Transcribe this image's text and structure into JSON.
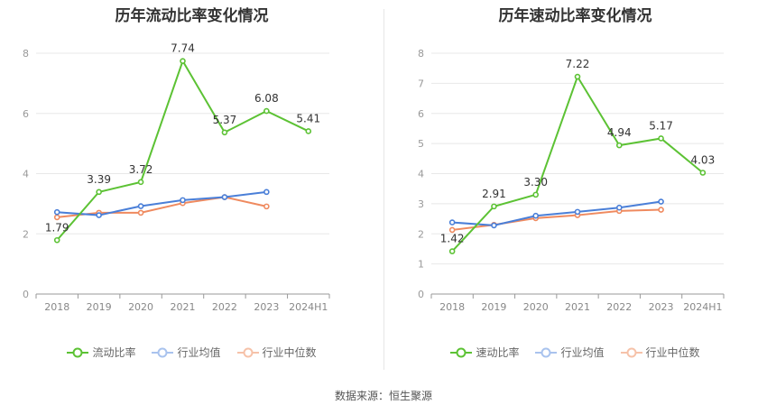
{
  "source_text": "数据来源：恒生聚源",
  "colors": {
    "company": "#5cc234",
    "industry_avg": "#4a7fd8",
    "industry_median": "#ef8a5f",
    "grid": "#e8e8e8",
    "axis": "#999999"
  },
  "chart_data": [
    {
      "type": "line",
      "title": "历年流动比率变化情况",
      "categories": [
        "2018",
        "2019",
        "2020",
        "2021",
        "2022",
        "2023",
        "2024H1"
      ],
      "ylim": [
        0,
        8
      ],
      "yticks": [
        0,
        2,
        4,
        6,
        8
      ],
      "grid": true,
      "legend_position": "bottom",
      "series": [
        {
          "name": "流动比率",
          "values": [
            1.79,
            3.39,
            3.72,
            7.74,
            5.37,
            6.08,
            5.41
          ],
          "labels": [
            "1.79",
            "3.39",
            "3.72",
            "7.74",
            "5.37",
            "6.08",
            "5.41"
          ]
        },
        {
          "name": "行业均值",
          "values": [
            2.72,
            2.62,
            2.92,
            3.12,
            3.22,
            3.39,
            null
          ]
        },
        {
          "name": "行业中位数",
          "values": [
            2.55,
            2.7,
            2.7,
            3.02,
            3.22,
            2.91,
            null
          ]
        }
      ]
    },
    {
      "type": "line",
      "title": "历年速动比率变化情况",
      "categories": [
        "2018",
        "2019",
        "2020",
        "2021",
        "2022",
        "2023",
        "2024H1"
      ],
      "ylim": [
        0,
        8
      ],
      "yticks": [
        0,
        1,
        2,
        3,
        4,
        5,
        6,
        7,
        8
      ],
      "grid": true,
      "legend_position": "bottom",
      "series": [
        {
          "name": "速动比率",
          "values": [
            1.42,
            2.91,
            3.3,
            7.22,
            4.94,
            5.17,
            4.03
          ],
          "labels": [
            "1.42",
            "2.91",
            "3.30",
            "7.22",
            "4.94",
            "5.17",
            "4.03"
          ]
        },
        {
          "name": "行业均值",
          "values": [
            2.38,
            2.28,
            2.6,
            2.73,
            2.87,
            3.07,
            null
          ]
        },
        {
          "name": "行业中位数",
          "values": [
            2.13,
            2.3,
            2.52,
            2.62,
            2.76,
            2.8,
            null
          ]
        }
      ]
    }
  ]
}
